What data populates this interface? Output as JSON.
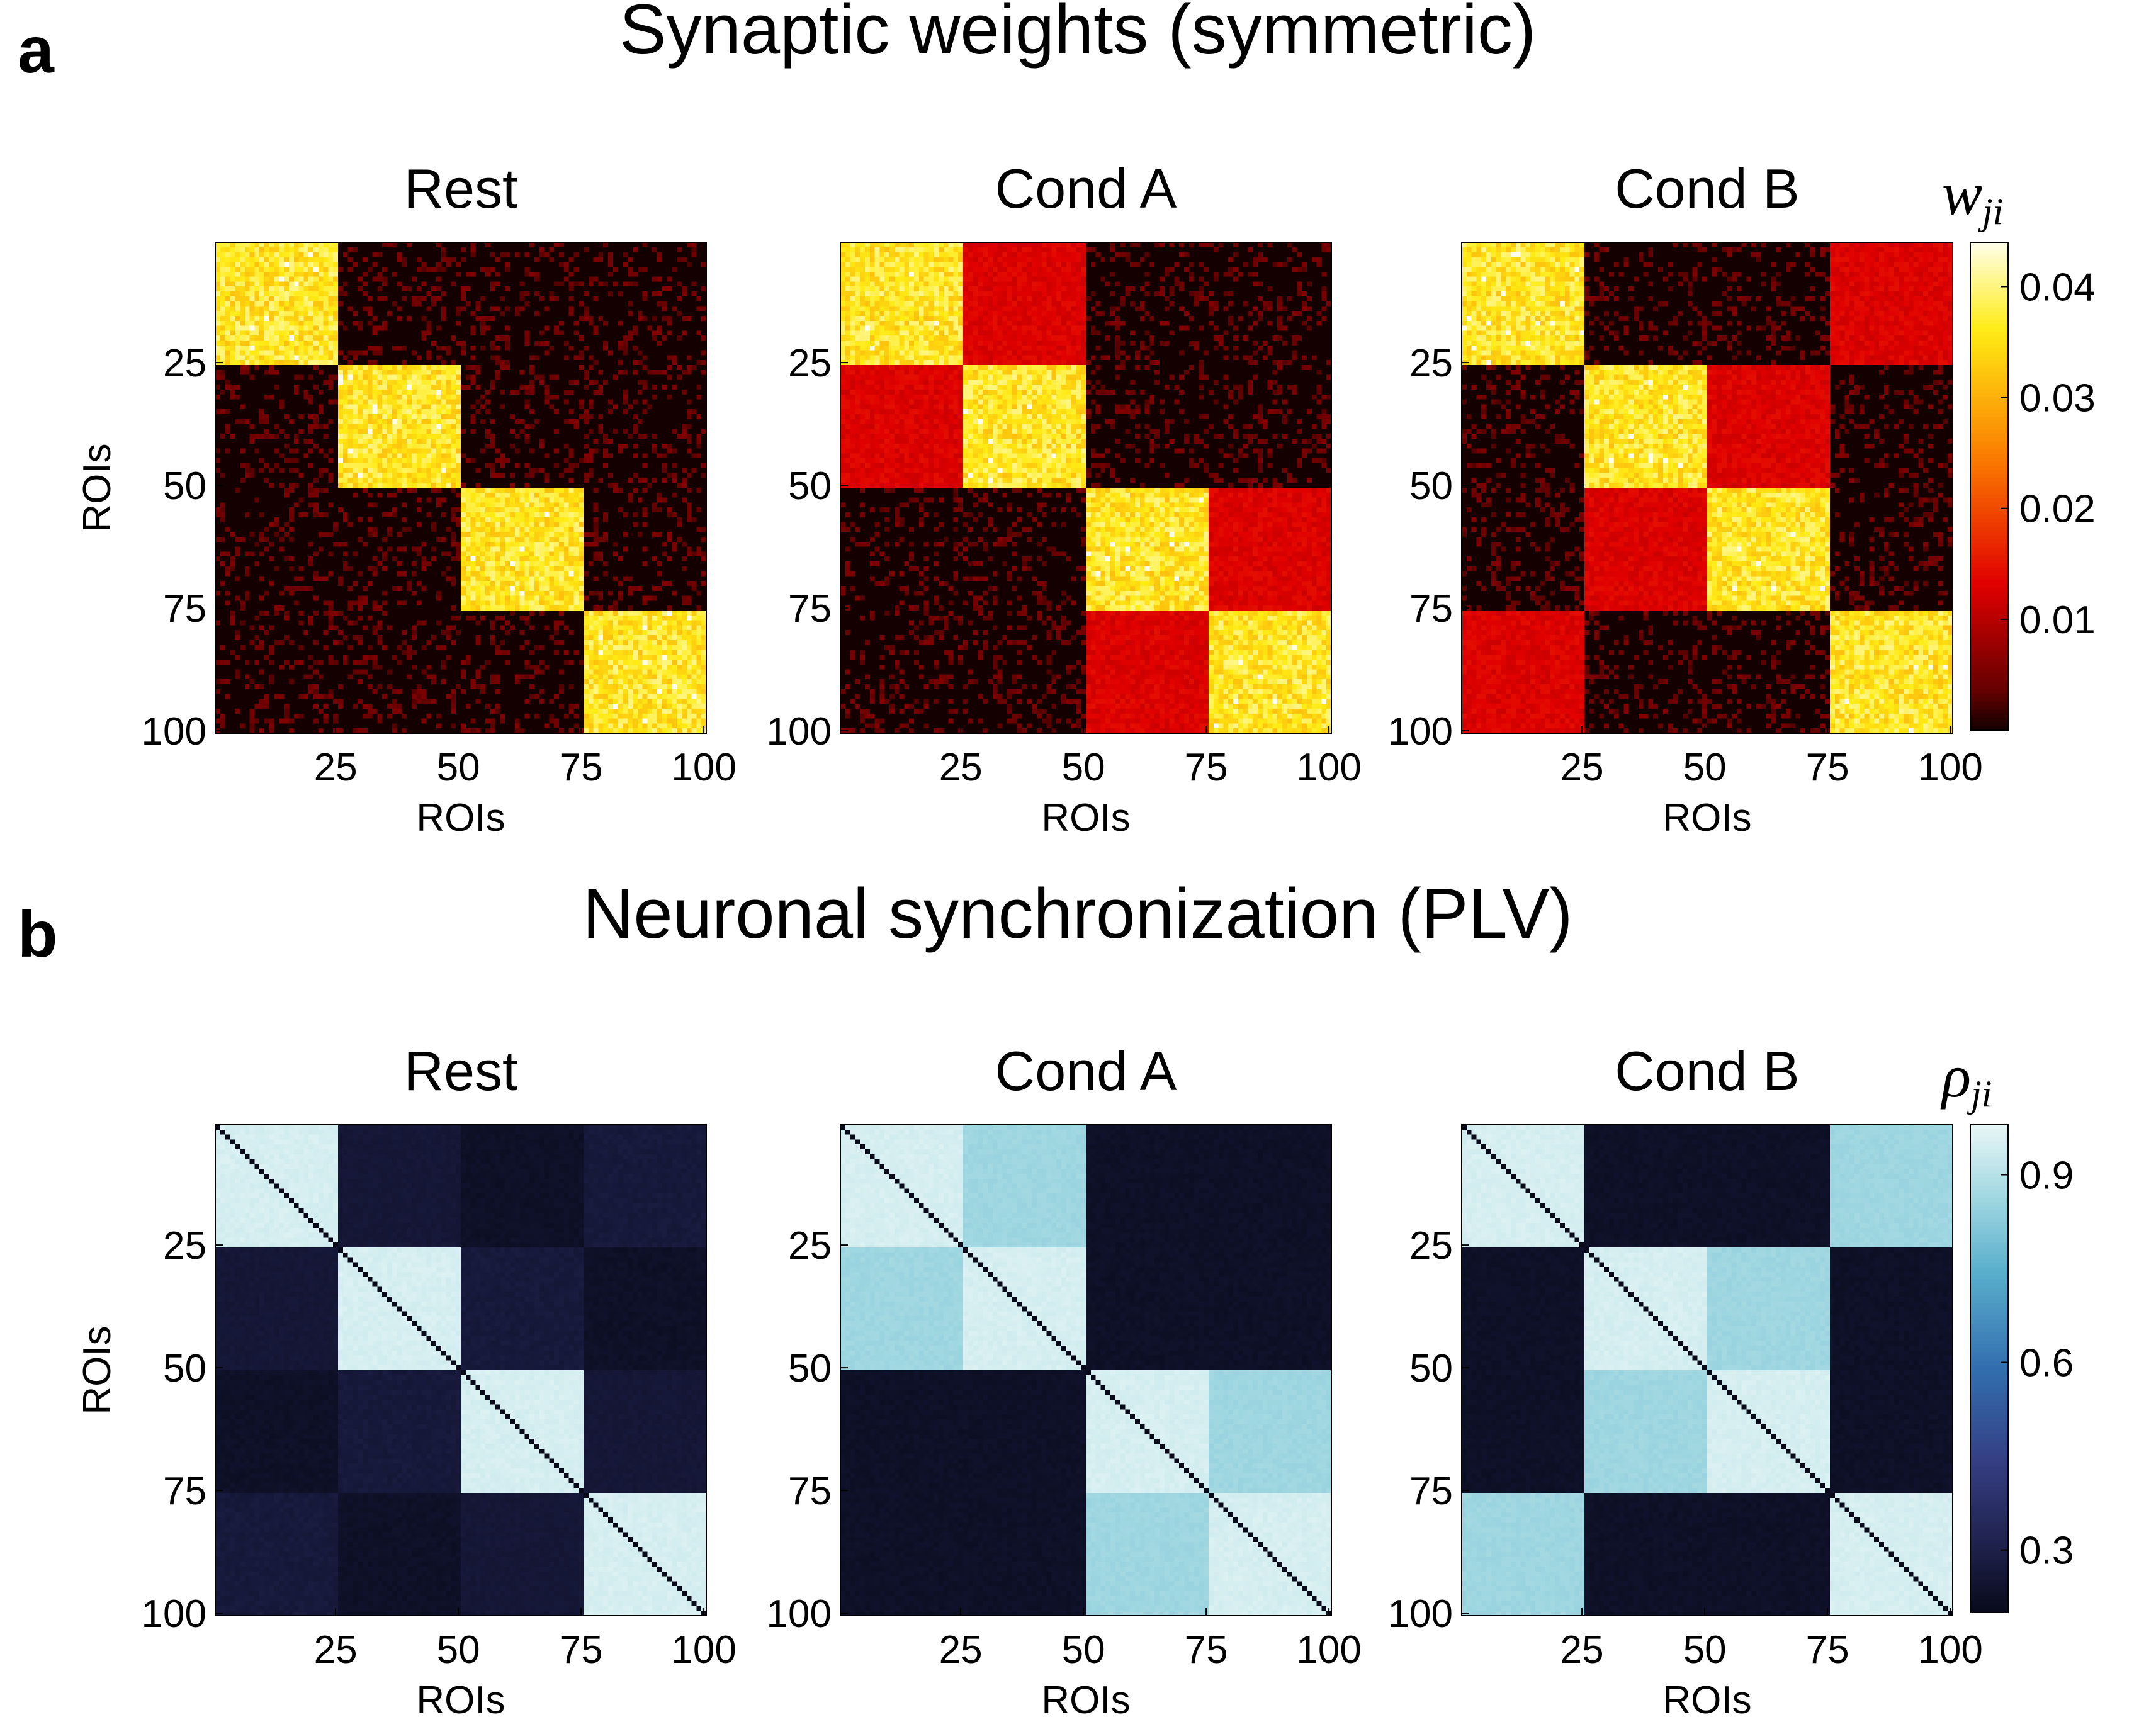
{
  "panels": [
    {
      "letter": "a",
      "title": "Synaptic weights (symmetric)",
      "colormap": "hot",
      "colorbar": {
        "label_main": "w",
        "label_sub": "ji",
        "min": 0.0,
        "max": 0.044,
        "ticks": [
          0.01,
          0.02,
          0.03,
          0.04
        ],
        "tick_labels": [
          "0.01",
          "0.02",
          "0.03",
          "0.04"
        ]
      }
    },
    {
      "letter": "b",
      "title": "Neuronal synchronization (PLV)",
      "colormap": "ice",
      "colorbar": {
        "label_main": "ρ",
        "label_sub": "ji",
        "min": 0.2,
        "max": 0.98,
        "ticks": [
          0.3,
          0.6,
          0.9
        ],
        "tick_labels": [
          "0.3",
          "0.6",
          "0.9"
        ]
      }
    }
  ],
  "chart_data": [
    {
      "type": "heatmap",
      "panel": "a",
      "title": "Rest",
      "xlabel": "ROIs",
      "ylabel": "ROIs",
      "size": 100,
      "xticks": [
        25,
        50,
        75,
        100
      ],
      "yticks": [
        25,
        50,
        75,
        100
      ],
      "block_size": 25,
      "value_range": [
        0.0,
        0.044
      ],
      "block_values": [
        [
          0.036,
          0.0,
          0.0,
          0.0
        ],
        [
          0.0,
          0.036,
          0.0,
          0.0
        ],
        [
          0.0,
          0.0,
          0.036,
          0.0
        ],
        [
          0.0,
          0.0,
          0.0,
          0.036
        ]
      ],
      "sparse_background": {
        "fraction": 0.22,
        "value": 0.004
      },
      "diagonal_value": null
    },
    {
      "type": "heatmap",
      "panel": "a",
      "title": "Cond A",
      "xlabel": "ROIs",
      "ylabel": "",
      "size": 100,
      "xticks": [
        25,
        50,
        75,
        100
      ],
      "yticks": [
        25,
        50,
        75,
        100
      ],
      "block_size": 25,
      "value_range": [
        0.0,
        0.044
      ],
      "block_values": [
        [
          0.036,
          0.013,
          0.0,
          0.0
        ],
        [
          0.013,
          0.036,
          0.0,
          0.0
        ],
        [
          0.0,
          0.0,
          0.036,
          0.013
        ],
        [
          0.0,
          0.0,
          0.013,
          0.036
        ]
      ],
      "sparse_background": {
        "fraction": 0.22,
        "value": 0.004
      },
      "diagonal_value": null
    },
    {
      "type": "heatmap",
      "panel": "a",
      "title": "Cond B",
      "xlabel": "ROIs",
      "ylabel": "",
      "size": 100,
      "xticks": [
        25,
        50,
        75,
        100
      ],
      "yticks": [
        25,
        50,
        75,
        100
      ],
      "block_size": 25,
      "value_range": [
        0.0,
        0.044
      ],
      "block_values": [
        [
          0.036,
          0.0,
          0.0,
          0.013
        ],
        [
          0.0,
          0.036,
          0.013,
          0.0
        ],
        [
          0.0,
          0.013,
          0.036,
          0.0
        ],
        [
          0.013,
          0.0,
          0.0,
          0.036
        ]
      ],
      "sparse_background": {
        "fraction": 0.22,
        "value": 0.004
      },
      "diagonal_value": null
    },
    {
      "type": "heatmap",
      "panel": "b",
      "title": "Rest",
      "xlabel": "ROIs",
      "ylabel": "ROIs",
      "size": 100,
      "xticks": [
        25,
        50,
        75,
        100
      ],
      "yticks": [
        25,
        50,
        75,
        100
      ],
      "block_size": 25,
      "value_range": [
        0.2,
        0.98
      ],
      "block_values": [
        [
          0.95,
          0.26,
          0.23,
          0.27
        ],
        [
          0.26,
          0.95,
          0.27,
          0.23
        ],
        [
          0.23,
          0.27,
          0.95,
          0.26
        ],
        [
          0.27,
          0.23,
          0.26,
          0.95
        ]
      ],
      "diagonal_value": 0.2
    },
    {
      "type": "heatmap",
      "panel": "b",
      "title": "Cond A",
      "xlabel": "ROIs",
      "ylabel": "",
      "size": 100,
      "xticks": [
        25,
        50,
        75,
        100
      ],
      "yticks": [
        25,
        50,
        75,
        100
      ],
      "block_size": 25,
      "value_range": [
        0.2,
        0.98
      ],
      "block_values": [
        [
          0.95,
          0.86,
          0.23,
          0.23
        ],
        [
          0.86,
          0.95,
          0.23,
          0.23
        ],
        [
          0.23,
          0.23,
          0.95,
          0.86
        ],
        [
          0.23,
          0.23,
          0.86,
          0.95
        ]
      ],
      "diagonal_value": 0.2
    },
    {
      "type": "heatmap",
      "panel": "b",
      "title": "Cond B",
      "xlabel": "ROIs",
      "ylabel": "",
      "size": 100,
      "xticks": [
        25,
        50,
        75,
        100
      ],
      "yticks": [
        25,
        50,
        75,
        100
      ],
      "block_size": 25,
      "value_range": [
        0.2,
        0.98
      ],
      "block_values": [
        [
          0.95,
          0.23,
          0.23,
          0.86
        ],
        [
          0.23,
          0.95,
          0.86,
          0.23
        ],
        [
          0.23,
          0.86,
          0.95,
          0.23
        ],
        [
          0.86,
          0.23,
          0.23,
          0.95
        ]
      ],
      "diagonal_value": 0.2
    }
  ]
}
